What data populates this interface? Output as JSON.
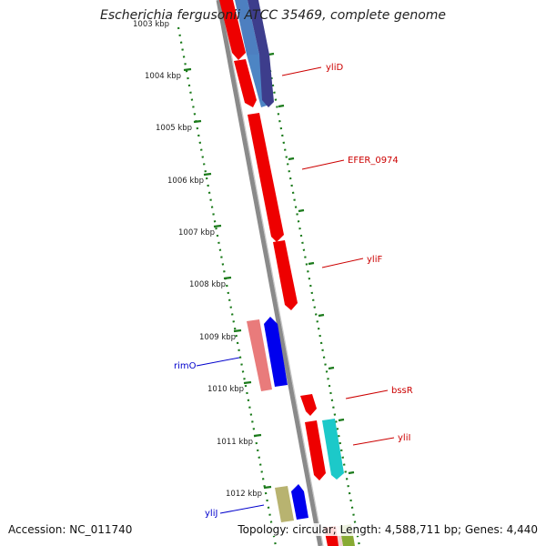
{
  "title": "Escherichia fergusonii ATCC 35469, complete genome",
  "footer": {
    "accession": "Accession: NC_011740",
    "summary": "Topology: circular; Length: 4,588,711 bp; Genes: 4,440"
  },
  "colors": {
    "backbone": "#8a8a8a",
    "tick": "#1a7a1a",
    "forward_label": "#cc0000",
    "reverse_label": "#0000cc"
  },
  "kbp_labels": [
    "1004 kbp",
    "1005 kbp",
    "1006 kbp",
    "1007 kbp",
    "1008 kbp",
    "1009 kbp",
    "1010 kbp",
    "1011 kbp",
    "1012 kbp"
  ],
  "top_faded_label": "1003 kbp",
  "gene_labels": {
    "yliD": "yliD",
    "EFER_0974": "EFER_0974",
    "yliF": "yliF",
    "bssR": "bssR",
    "yliI": "yliI",
    "rimO": "rimO",
    "yliJ": "yliJ"
  }
}
